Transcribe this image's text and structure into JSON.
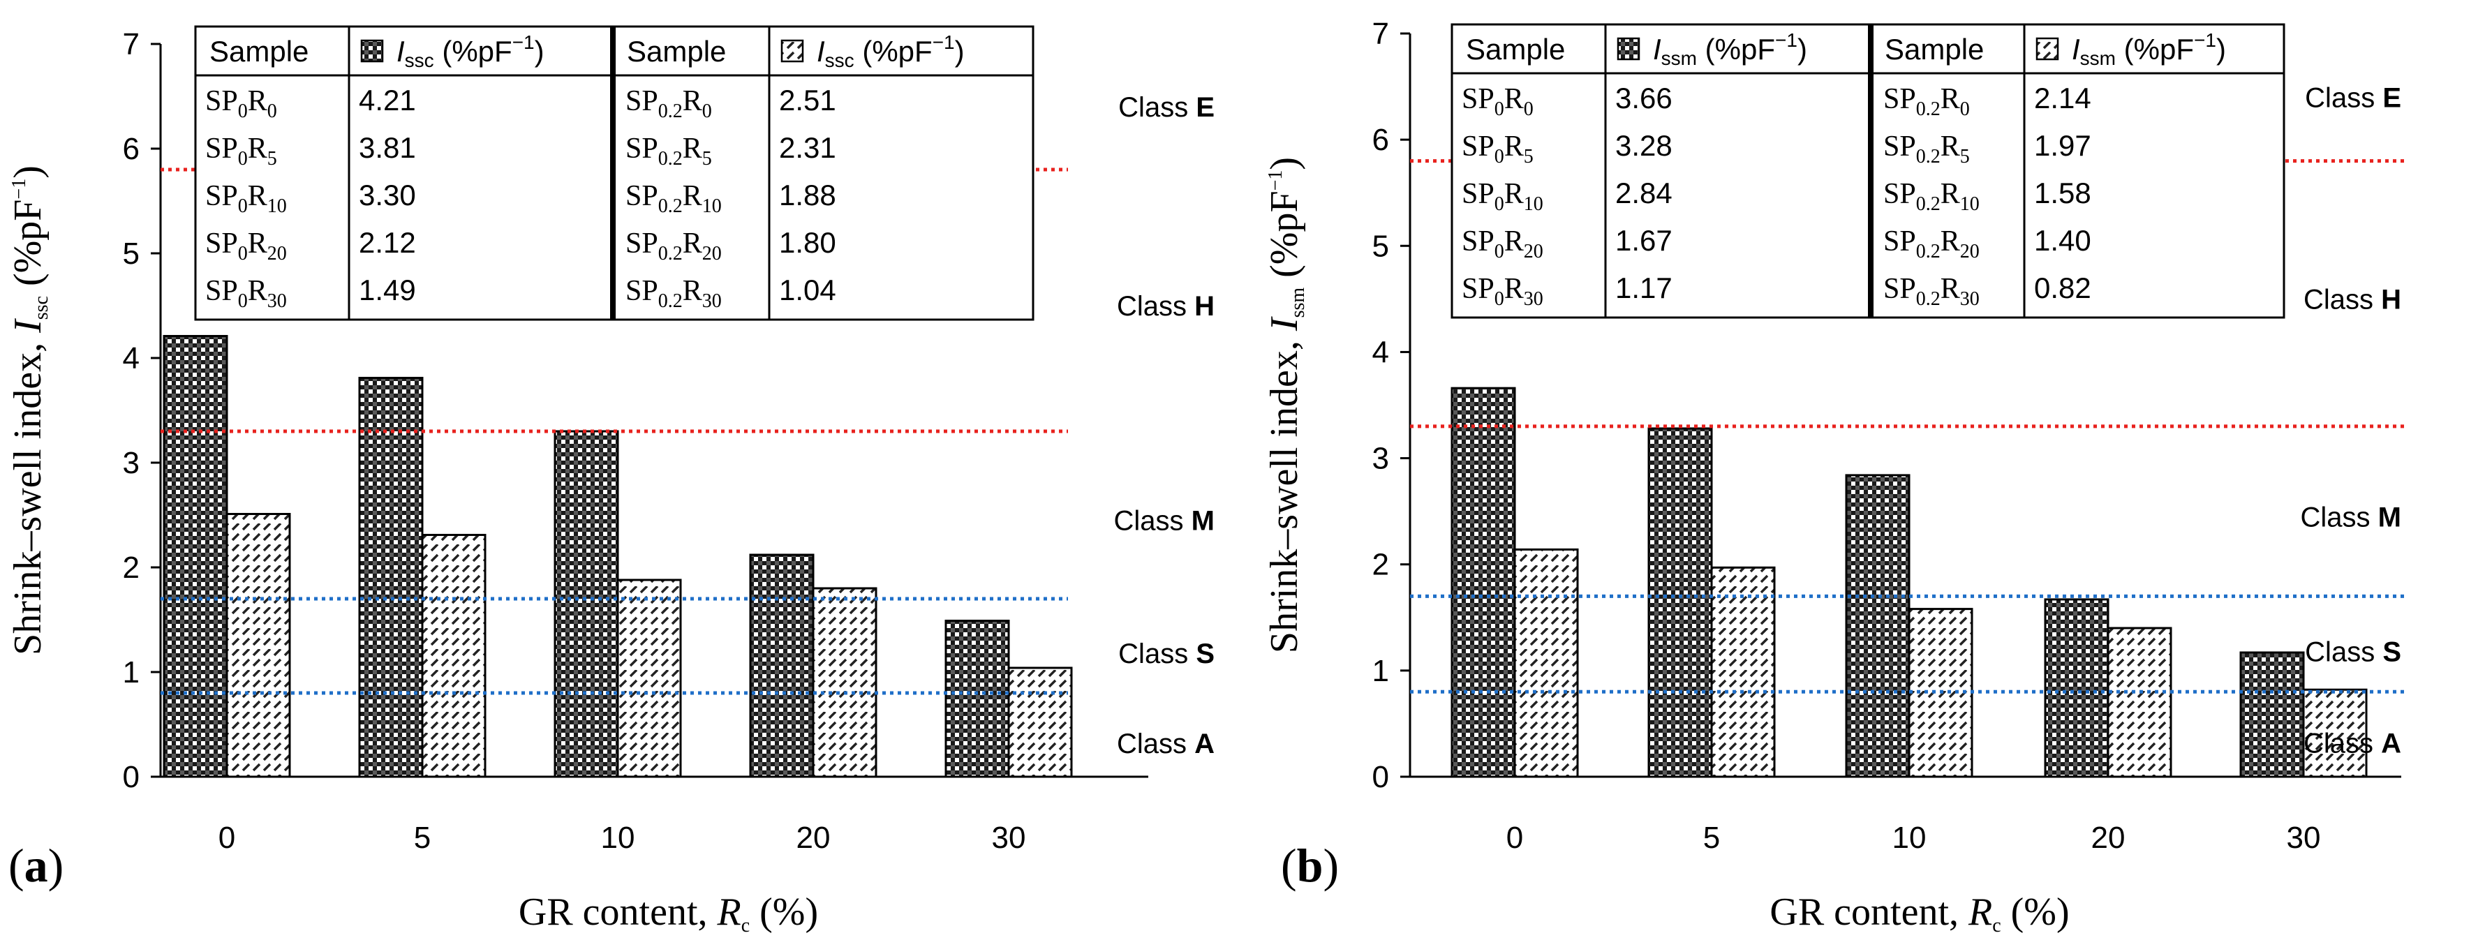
{
  "chart_data": [
    {
      "type": "bar",
      "panel_label": "a",
      "categories": [
        "0",
        "5",
        "10",
        "20",
        "30"
      ],
      "series": [
        {
          "name": "SP0",
          "legend_symbol": "I",
          "legend_sub": "ssc",
          "legend_unit": " (%pF",
          "legend_exp": "−1",
          "legend_close": ")",
          "pattern": "checker",
          "values": [
            4.21,
            3.81,
            3.3,
            2.12,
            1.49
          ]
        },
        {
          "name": "SP0.2",
          "legend_symbol": "I",
          "legend_sub": "ssc",
          "legend_unit": " (%pF",
          "legend_exp": "−1",
          "legend_close": ")",
          "pattern": "dash",
          "values": [
            2.51,
            2.31,
            1.88,
            1.8,
            1.04
          ]
        }
      ],
      "ylim": [
        0,
        7
      ],
      "yticks": [
        "0",
        "1",
        "2",
        "3",
        "4",
        "5",
        "6",
        "7"
      ],
      "ylabel": {
        "text": "Shrink–swell index, ",
        "symbol": "I",
        "sub": "ssc",
        "unit": " (%pF",
        "exp": "−1",
        "close": ")"
      },
      "xlabel": {
        "text": "GR content, ",
        "symbol": "R",
        "sub": "c",
        "unit": " (%)"
      },
      "thresholds": [
        {
          "value": 5.8,
          "color": "#e8221e"
        },
        {
          "value": 3.3,
          "color": "#e8221e"
        },
        {
          "value": 1.7,
          "color": "#1f6fc8"
        },
        {
          "value": 0.8,
          "color": "#1f6fc8"
        }
      ],
      "classes": [
        {
          "word": "Class ",
          "letter": "E",
          "y": 6.4
        },
        {
          "word": "Class ",
          "letter": "H",
          "y": 4.5
        },
        {
          "word": "Class ",
          "letter": "M",
          "y": 2.45
        },
        {
          "word": "Class ",
          "letter": "S",
          "y": 1.18
        },
        {
          "word": "Class ",
          "letter": "A",
          "y": 0.32
        }
      ],
      "table": {
        "header_sample": "Sample",
        "left_prefix": "SP",
        "left_sub": "0",
        "right_prefix": "SP",
        "right_sub": "0.2",
        "r_subs": [
          "0",
          "5",
          "10",
          "20",
          "30"
        ],
        "left_values": [
          "4.21",
          "3.81",
          "3.30",
          "2.12",
          "1.49"
        ],
        "right_values": [
          "2.51",
          "2.31",
          "1.88",
          "1.80",
          "1.04"
        ]
      }
    },
    {
      "type": "bar",
      "panel_label": "b",
      "categories": [
        "0",
        "5",
        "10",
        "20",
        "30"
      ],
      "series": [
        {
          "name": "SP0",
          "legend_symbol": "I",
          "legend_sub": "ssm",
          "legend_unit": " (%pF",
          "legend_exp": "−1",
          "legend_close": ")",
          "pattern": "checker",
          "values": [
            3.66,
            3.28,
            2.84,
            1.67,
            1.17
          ]
        },
        {
          "name": "SP0.2",
          "legend_symbol": "I",
          "legend_sub": "ssm",
          "legend_unit": " (%pF",
          "legend_exp": "−1",
          "legend_close": ")",
          "pattern": "dash",
          "values": [
            2.14,
            1.97,
            1.58,
            1.4,
            0.82
          ]
        }
      ],
      "ylim": [
        0,
        7
      ],
      "yticks": [
        "0",
        "1",
        "2",
        "3",
        "4",
        "5",
        "6",
        "7"
      ],
      "ylabel": {
        "text": "Shrink–swell index, ",
        "symbol": "I",
        "sub": "ssm",
        "unit": " (%pF",
        "exp": "−1",
        "close": ")"
      },
      "xlabel": {
        "text": "GR content, ",
        "symbol": "R",
        "sub": "c",
        "unit": " (%)"
      },
      "thresholds": [
        {
          "value": 5.8,
          "color": "#e8221e"
        },
        {
          "value": 3.3,
          "color": "#e8221e"
        },
        {
          "value": 1.7,
          "color": "#1f6fc8"
        },
        {
          "value": 0.8,
          "color": "#1f6fc8"
        }
      ],
      "classes": [
        {
          "word": "Class ",
          "letter": "E",
          "y": 6.4
        },
        {
          "word": "Class ",
          "letter": "H",
          "y": 4.5
        },
        {
          "word": "Class ",
          "letter": "M",
          "y": 2.45
        },
        {
          "word": "Class ",
          "letter": "S",
          "y": 1.18
        },
        {
          "word": "Class ",
          "letter": "A",
          "y": 0.32
        }
      ],
      "table": {
        "header_sample": "Sample",
        "left_prefix": "SP",
        "left_sub": "0",
        "right_prefix": "SP",
        "right_sub": "0.2",
        "r_subs": [
          "0",
          "5",
          "10",
          "20",
          "30"
        ],
        "left_values": [
          "3.66",
          "3.28",
          "2.84",
          "1.67",
          "1.17"
        ],
        "right_values": [
          "2.14",
          "1.97",
          "1.58",
          "1.40",
          "0.82"
        ]
      }
    }
  ]
}
